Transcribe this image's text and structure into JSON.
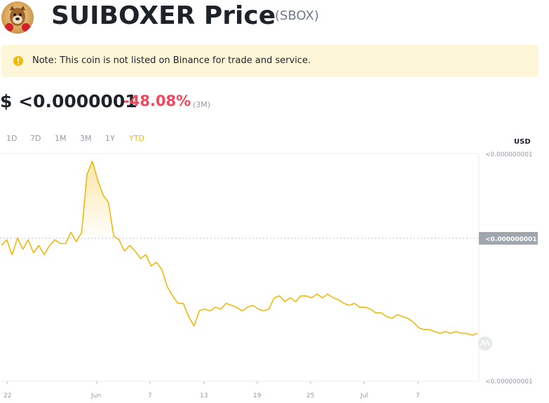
{
  "header": {
    "title": "SUIBOXER Price",
    "symbol": "(SBOX)"
  },
  "note": {
    "text": "Note: This coin is not listed on Binance for trade and service."
  },
  "price": {
    "value": "$ <0.0000001",
    "change": "-48.08%",
    "period": "(3M)"
  },
  "ranges": [
    "1D",
    "7D",
    "1M",
    "3M",
    "1Y",
    "YTD"
  ],
  "active_range": "YTD",
  "colors": {
    "line": "#f0b90b",
    "negative": "#f6465d",
    "note_bg": "#fef6d8"
  },
  "chart_data": {
    "type": "line",
    "currency_label": "USD",
    "y_tick_labels": [
      "<0.000000001",
      "<0.000000001"
    ],
    "current_price_label": "<0.000000001",
    "x_tick_labels": [
      "22",
      "Jun",
      "7",
      "13",
      "19",
      "25",
      "Jul",
      "7"
    ],
    "x": [
      0,
      1,
      2,
      3,
      4,
      5,
      6,
      7,
      8,
      9,
      10,
      11,
      12,
      13,
      14,
      15,
      16,
      17,
      18,
      19,
      20,
      21,
      22,
      23,
      24,
      25,
      26,
      27,
      28,
      29,
      30,
      31,
      32,
      33,
      34,
      35,
      36,
      37,
      38,
      39,
      40,
      41,
      42,
      43,
      44,
      45,
      46,
      47,
      48,
      49,
      50,
      51,
      52,
      53,
      54,
      55,
      56,
      57,
      58,
      59,
      60,
      61,
      62,
      63,
      64,
      65,
      66,
      67,
      68,
      69,
      70,
      71,
      72,
      73,
      74,
      75,
      76,
      77,
      78,
      79,
      80,
      81,
      82,
      83,
      84,
      85,
      86,
      87,
      88,
      89
    ],
    "series": [
      {
        "values": [
          55,
          58,
          50,
          59,
          53,
          58,
          51,
          55,
          50,
          55,
          58,
          56,
          56,
          62,
          57,
          62,
          93,
          100,
          90,
          82,
          78,
          60,
          58,
          52,
          55,
          52,
          48,
          50,
          44,
          46,
          42,
          33,
          28,
          24,
          24,
          17,
          12,
          20,
          21,
          20,
          22,
          21,
          24,
          23,
          22,
          20,
          22,
          23,
          21,
          20,
          21,
          27,
          28,
          25,
          27,
          25,
          28,
          28,
          27,
          29,
          27,
          29,
          27,
          26,
          24,
          23,
          24,
          22,
          22,
          21,
          19,
          19,
          17,
          16,
          18,
          17,
          16,
          14,
          11,
          10,
          10,
          9,
          8,
          9,
          8,
          9,
          8,
          8,
          7,
          8
        ]
      }
    ],
    "ylim": [
      0,
      100
    ]
  }
}
